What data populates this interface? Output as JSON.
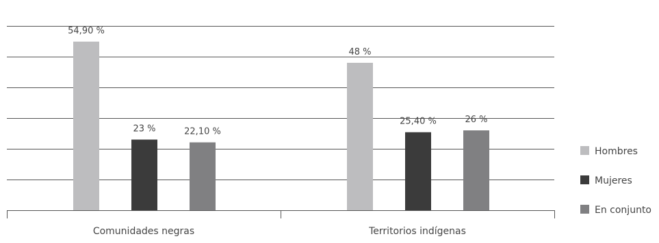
{
  "chart_data": {
    "type": "bar",
    "categories": [
      "Comunidades negras",
      "Territorios indígenas"
    ],
    "series": [
      {
        "name": "Hombres",
        "values": [
          54.9,
          48
        ],
        "labels": [
          "54,90 %",
          "48 %"
        ],
        "color": "#bdbdbf"
      },
      {
        "name": "Mujeres",
        "values": [
          23,
          25.4
        ],
        "labels": [
          "23 %",
          "25,40 %"
        ],
        "color": "#3b3b3b"
      },
      {
        "name": "En conjunto",
        "values": [
          22.1,
          26
        ],
        "labels": [
          "22,10 %",
          "26 %"
        ],
        "color": "#808082"
      }
    ],
    "title": "",
    "xlabel": "",
    "ylabel": "",
    "ylim": [
      0,
      60
    ],
    "grid": true,
    "gridline_step": 10,
    "show_y_tick_labels": false,
    "legend_position": "right"
  }
}
